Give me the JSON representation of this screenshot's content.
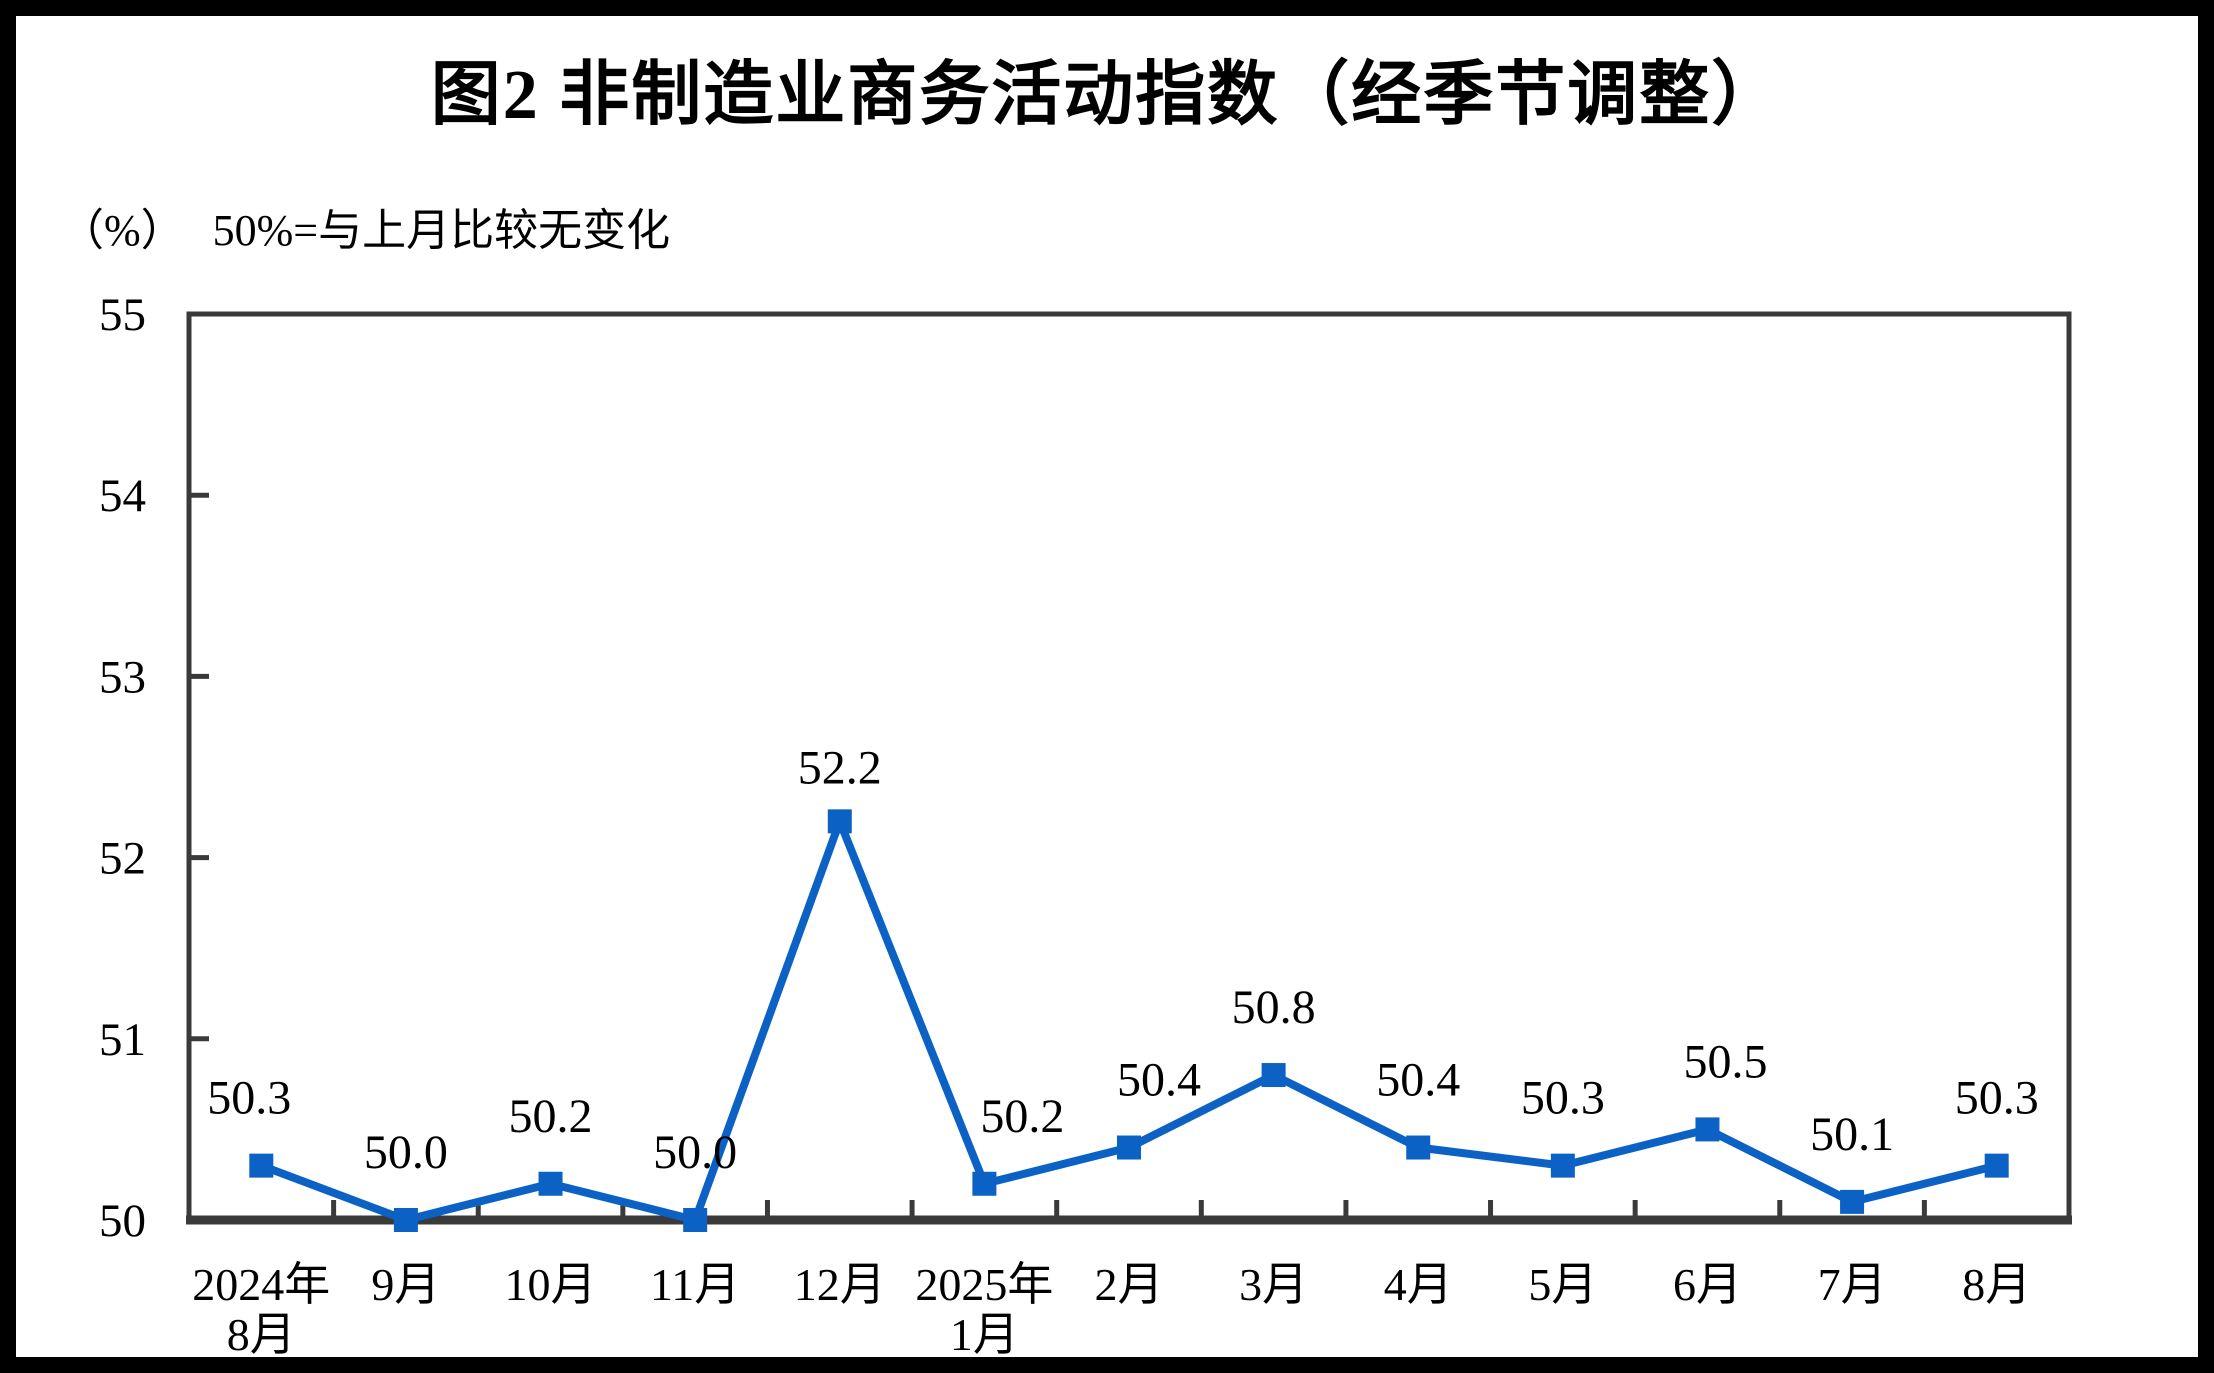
{
  "title": "图2 非制造业商务活动指数（经季节调整）",
  "unit_label": "（%）",
  "subtitle": "50%=与上月比较无变化",
  "chart_data": {
    "type": "line",
    "title": "图2 非制造业商务活动指数（经季节调整）",
    "ylabel_unit": "（%）",
    "note": "50%=与上月比较无变化",
    "categories": [
      "2024年\n8月",
      "9月",
      "10月",
      "11月",
      "12月",
      "2025年\n1月",
      "2月",
      "3月",
      "4月",
      "5月",
      "6月",
      "7月",
      "8月"
    ],
    "series": [
      {
        "name": "非制造业商务活动指数",
        "values": [
          50.3,
          50.0,
          50.2,
          50.0,
          52.2,
          50.2,
          50.4,
          50.8,
          50.4,
          50.3,
          50.5,
          50.1,
          50.3
        ],
        "data_labels": [
          "50.3",
          "50.0",
          "50.2",
          "50.0",
          "52.2",
          "50.2",
          "50.4",
          "50.8",
          "50.4",
          "50.3",
          "50.5",
          "50.1",
          "50.3"
        ]
      }
    ],
    "ylim": [
      50,
      55
    ],
    "yticks": [
      "50",
      "51",
      "52",
      "53",
      "54",
      "55"
    ],
    "grid": false,
    "legend_position": "none",
    "colors": {
      "line": "#0c62c4",
      "marker": "#0c62c4",
      "axis": "#3a3a3a",
      "text": "#000000",
      "background": "#ffffff",
      "frame": "#000000"
    }
  }
}
